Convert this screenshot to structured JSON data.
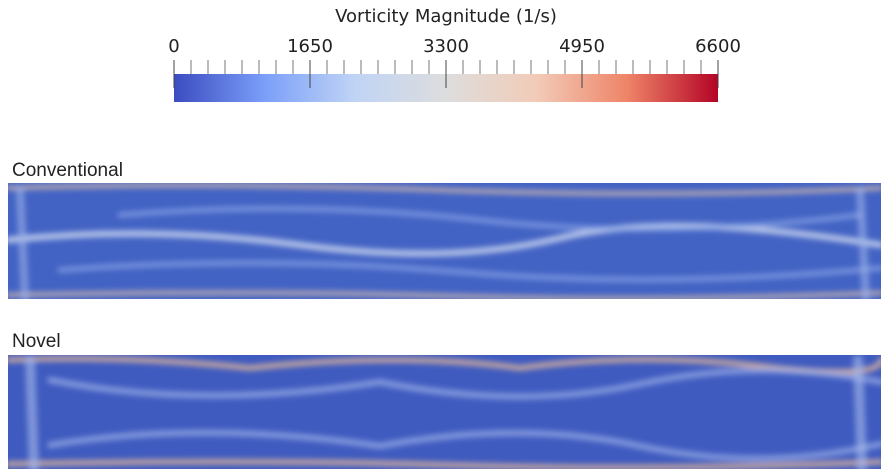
{
  "colorbar": {
    "title": "Vorticity Magnitude (1/s)",
    "lim": [
      0,
      6600
    ],
    "ticks": [
      0,
      1650,
      3300,
      4950,
      6600
    ],
    "colors": [
      "#3b4cc0",
      "#7b9ff9",
      "#c0d4f5",
      "#dddddd",
      "#f2cbb7",
      "#ee8468",
      "#b40426"
    ]
  },
  "panels": [
    {
      "label": "Conventional"
    },
    {
      "label": "Novel"
    }
  ]
}
